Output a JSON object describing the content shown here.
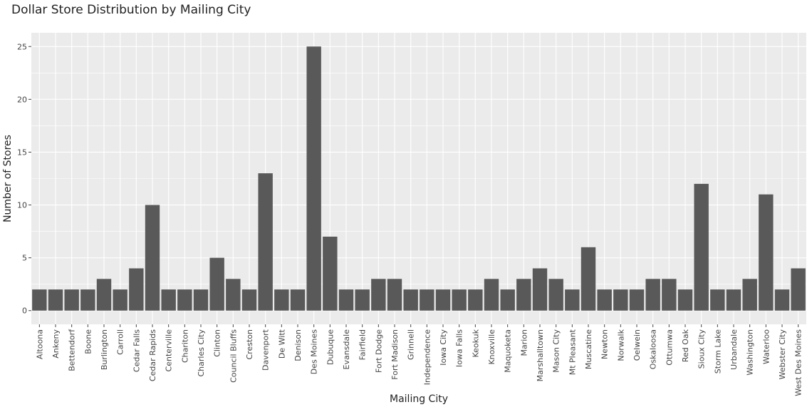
{
  "chart_data": {
    "type": "bar",
    "title": "Dollar Store Distribution by Mailing City",
    "xlabel": "Mailing City",
    "ylabel": "Number of Stores",
    "ylim": [
      -1.3,
      26.3
    ],
    "yticks": [
      0,
      5,
      10,
      15,
      20,
      25
    ],
    "grid": true,
    "categories": [
      "Altoona",
      "Ankeny",
      "Bettendorf",
      "Boone",
      "Burlington",
      "Carroll",
      "Cedar Falls",
      "Cedar Rapids",
      "Centerville",
      "Chariton",
      "Charles City",
      "Clinton",
      "Council Bluffs",
      "Creston",
      "Davenport",
      "De Witt",
      "Denison",
      "Des Moines",
      "Dubuque",
      "Evansdale",
      "Fairfield",
      "Fort Dodge",
      "Fort Madison",
      "Grinnell",
      "Independence",
      "Iowa City",
      "Iowa Falls",
      "Keokuk",
      "Knoxville",
      "Maquoketa",
      "Marion",
      "Marshalltown",
      "Mason City",
      "Mt Pleasant",
      "Muscatine",
      "Newton",
      "Norwalk",
      "Oelwein",
      "Oskaloosa",
      "Ottumwa",
      "Red Oak",
      "Sioux City",
      "Storm Lake",
      "Urbandale",
      "Washington",
      "Waterloo",
      "Webster City",
      "West Des Moines"
    ],
    "values": [
      2,
      2,
      2,
      2,
      3,
      2,
      4,
      10,
      2,
      2,
      2,
      5,
      3,
      2,
      13,
      2,
      2,
      25,
      7,
      2,
      2,
      3,
      3,
      2,
      2,
      2,
      2,
      2,
      3,
      2,
      3,
      4,
      3,
      2,
      6,
      2,
      2,
      2,
      3,
      3,
      2,
      12,
      2,
      2,
      3,
      11,
      2,
      4
    ],
    "bar_color": "#595959",
    "panel_color": "#ebebeb",
    "grid_color": "#ffffff"
  }
}
